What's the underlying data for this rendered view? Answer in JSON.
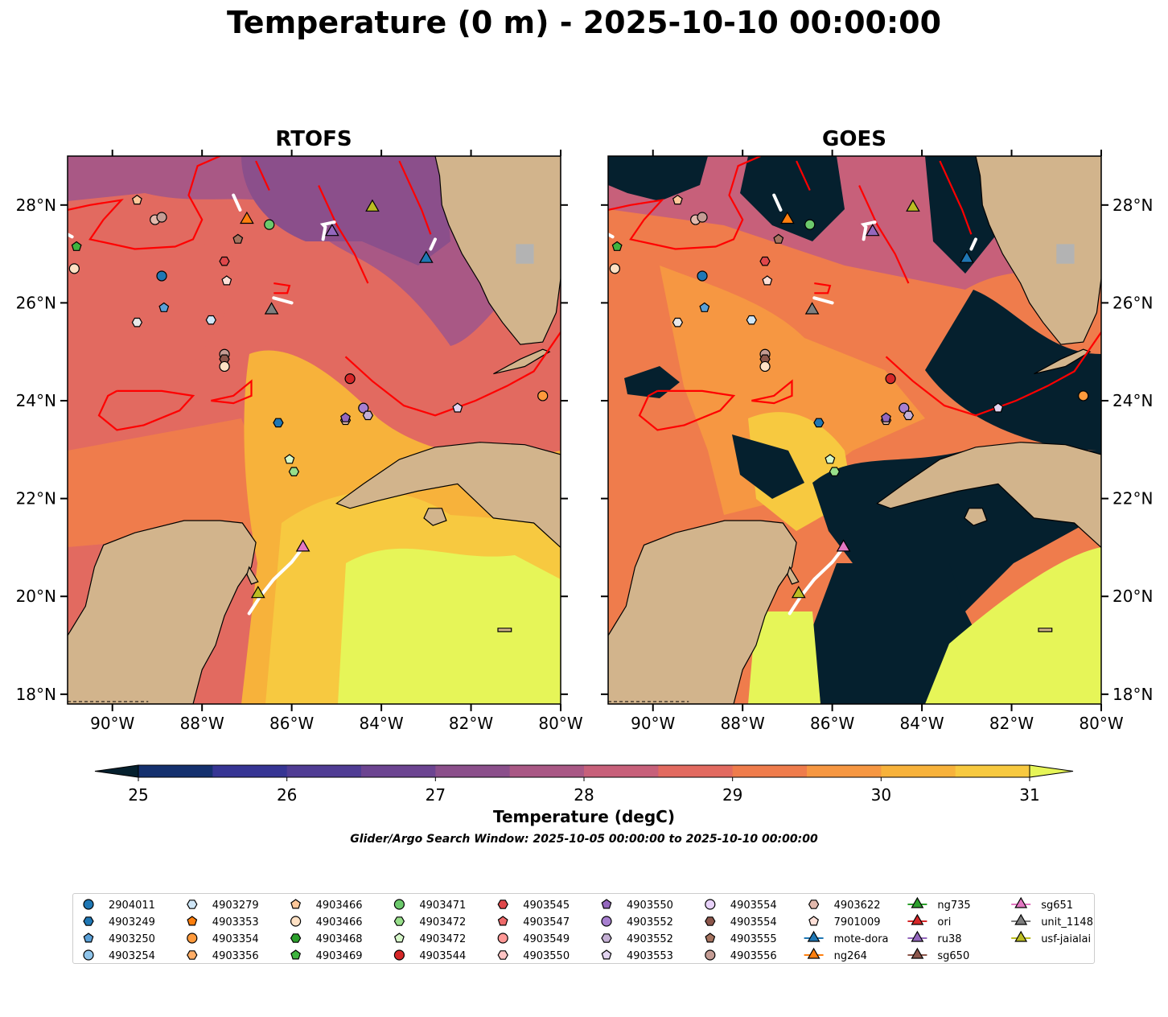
{
  "title": "Temperature (0 m) - 2025-10-10 00:00:00",
  "panels": [
    {
      "title": "RTOFS"
    },
    {
      "title": "GOES"
    }
  ],
  "axes": {
    "lon_ticks": [
      "90°W",
      "88°W",
      "86°W",
      "84°W",
      "82°W",
      "80°W"
    ],
    "lat_ticks": [
      "28°N",
      "26°N",
      "24°N",
      "22°N",
      "20°N",
      "18°N"
    ],
    "lon_range": [
      -91,
      -80
    ],
    "lat_range": [
      17.8,
      29
    ]
  },
  "colorbar": {
    "label": "Temperature (degC)",
    "ticks": [
      "25",
      "26",
      "27",
      "28",
      "29",
      "30",
      "31"
    ],
    "range": [
      25,
      31
    ],
    "extend": "both",
    "colors": [
      "#05202e",
      "#14306e",
      "#363594",
      "#503c94",
      "#6c4491",
      "#8b4f8b",
      "#a95885",
      "#c7607a",
      "#e26a60",
      "#ef7c4c",
      "#f69742",
      "#f7b23b",
      "#f7c940",
      "#e6f558"
    ]
  },
  "search_window": "Glider/Argo Search Window: 2025-10-05 00:00:00 to 2025-10-10 00:00:00",
  "colors": {
    "land": "#d2b48c",
    "cloud": "#05202e",
    "front": "#ff0000",
    "track": "#ffffff"
  },
  "legend": [
    {
      "label": "2904011",
      "marker": "circle",
      "color": "#1f77b4"
    },
    {
      "label": "4903249",
      "marker": "hexagon",
      "color": "#1f77b4"
    },
    {
      "label": "4903250",
      "marker": "pentagon",
      "color": "#5aa0d8"
    },
    {
      "label": "4903254",
      "marker": "circle",
      "color": "#8fc4ea"
    },
    {
      "label": "4903279",
      "marker": "hexagon",
      "color": "#cfe6f7"
    },
    {
      "label": "4903353",
      "marker": "pentagon",
      "color": "#ff7f0e"
    },
    {
      "label": "4903354",
      "marker": "circle",
      "color": "#ff9a3c"
    },
    {
      "label": "4903356",
      "marker": "hexagon",
      "color": "#ffad66"
    },
    {
      "label": "4903466",
      "marker": "pentagon",
      "color": "#ffc89a"
    },
    {
      "label": "4903466",
      "marker": "circle",
      "color": "#ffe1c4"
    },
    {
      "label": "4903468",
      "marker": "hexagon",
      "color": "#2ca02c"
    },
    {
      "label": "4903469",
      "marker": "pentagon",
      "color": "#3fb43f"
    },
    {
      "label": "4903471",
      "marker": "circle",
      "color": "#6cc96c"
    },
    {
      "label": "4903472",
      "marker": "hexagon",
      "color": "#98df8a"
    },
    {
      "label": "4903472",
      "marker": "pentagon",
      "color": "#d6f7c9"
    },
    {
      "label": "4903544",
      "marker": "circle",
      "color": "#d62728"
    },
    {
      "label": "4903545",
      "marker": "hexagon",
      "color": "#e0474a"
    },
    {
      "label": "4903547",
      "marker": "pentagon",
      "color": "#ee6a6a"
    },
    {
      "label": "4903549",
      "marker": "circle",
      "color": "#ff9896"
    },
    {
      "label": "4903550",
      "marker": "hexagon",
      "color": "#ffc4c4"
    },
    {
      "label": "4903550",
      "marker": "pentagon",
      "color": "#9467bd"
    },
    {
      "label": "4903552",
      "marker": "circle",
      "color": "#a77fcf"
    },
    {
      "label": "4903552",
      "marker": "hexagon",
      "color": "#c5b0d5"
    },
    {
      "label": "4903553",
      "marker": "pentagon",
      "color": "#e2d4f0"
    },
    {
      "label": "4903554",
      "marker": "circle",
      "color": "#e8d2fa"
    },
    {
      "label": "4903554",
      "marker": "hexagon",
      "color": "#8c564b"
    },
    {
      "label": "4903555",
      "marker": "pentagon",
      "color": "#a5735f"
    },
    {
      "label": "4903556",
      "marker": "circle",
      "color": "#c49c94"
    },
    {
      "label": "4903622",
      "marker": "hexagon",
      "color": "#e3b9ad"
    },
    {
      "label": "7901009",
      "marker": "pentagon",
      "color": "#ffe0d8"
    },
    {
      "label": "mote-dora",
      "marker": "triangle",
      "color": "#1f77b4",
      "line": true
    },
    {
      "label": "ng264",
      "marker": "triangle",
      "color": "#ff7f0e",
      "line": true
    },
    {
      "label": "ng735",
      "marker": "triangle",
      "color": "#2ca02c",
      "line": true
    },
    {
      "label": "ori",
      "marker": "triangle",
      "color": "#d62728",
      "line": true
    },
    {
      "label": "ru38",
      "marker": "triangle",
      "color": "#9467bd",
      "line": true
    },
    {
      "label": "sg650",
      "marker": "triangle",
      "color": "#8c564b",
      "line": true
    },
    {
      "label": "sg651",
      "marker": "triangle",
      "color": "#e377c2",
      "line": true
    },
    {
      "label": "unit_1148",
      "marker": "triangle",
      "color": "#7f7f7f",
      "line": true
    },
    {
      "label": "usf-jaialai",
      "marker": "triangle",
      "color": "#bcbd22",
      "line": true
    }
  ],
  "floats": [
    {
      "lon": -88.9,
      "lat": 26.55,
      "marker": "circle",
      "color": "#1f77b4"
    },
    {
      "lon": -88.85,
      "lat": 25.9,
      "marker": "pentagon",
      "color": "#5aa0d8"
    },
    {
      "lon": -89.45,
      "lat": 28.1,
      "marker": "pentagon",
      "color": "#ffc89a"
    },
    {
      "lon": -89.05,
      "lat": 27.7,
      "marker": "circle",
      "color": "#e3b9ad"
    },
    {
      "lon": -88.9,
      "lat": 27.75,
      "marker": "circle",
      "color": "#c49c94"
    },
    {
      "lon": -90.8,
      "lat": 27.15,
      "marker": "pentagon",
      "color": "#3fb43f"
    },
    {
      "lon": -90.85,
      "lat": 26.7,
      "marker": "circle",
      "color": "#ffe1c4"
    },
    {
      "lon": -87.5,
      "lat": 26.85,
      "marker": "hexagon",
      "color": "#e0474a"
    },
    {
      "lon": -87.45,
      "lat": 26.45,
      "marker": "pentagon",
      "color": "#ffe0d8"
    },
    {
      "lon": -87.2,
      "lat": 27.3,
      "marker": "pentagon",
      "color": "#a5735f"
    },
    {
      "lon": -86.5,
      "lat": 27.6,
      "marker": "circle",
      "color": "#6cc96c"
    },
    {
      "lon": -89.45,
      "lat": 25.6,
      "marker": "hexagon",
      "color": "#e8e8e8"
    },
    {
      "lon": -87.8,
      "lat": 25.65,
      "marker": "hexagon",
      "color": "#cfe6f7"
    },
    {
      "lon": -87.5,
      "lat": 24.95,
      "marker": "circle",
      "color": "#c49c94"
    },
    {
      "lon": -87.5,
      "lat": 24.85,
      "marker": "hexagon",
      "color": "#8c564b"
    },
    {
      "lon": -87.5,
      "lat": 24.7,
      "marker": "circle",
      "color": "#ffe1c4"
    },
    {
      "lon": -84.7,
      "lat": 24.45,
      "marker": "circle",
      "color": "#d62728"
    },
    {
      "lon": -84.4,
      "lat": 23.85,
      "marker": "circle",
      "color": "#a77fcf"
    },
    {
      "lon": -84.3,
      "lat": 23.7,
      "marker": "hexagon",
      "color": "#c5b0d5"
    },
    {
      "lon": -84.8,
      "lat": 23.6,
      "marker": "hexagon",
      "color": "#e3b9ad"
    },
    {
      "lon": -84.8,
      "lat": 23.65,
      "marker": "pentagon",
      "color": "#9467bd"
    },
    {
      "lon": -86.3,
      "lat": 23.55,
      "marker": "hexagon",
      "color": "#1f77b4"
    },
    {
      "lon": -86.05,
      "lat": 22.8,
      "marker": "pentagon",
      "color": "#d6f7c9"
    },
    {
      "lon": -85.95,
      "lat": 22.55,
      "marker": "hexagon",
      "color": "#98df8a"
    },
    {
      "lon": -82.3,
      "lat": 23.85,
      "marker": "pentagon",
      "color": "#e2d4f0"
    },
    {
      "lon": -80.4,
      "lat": 24.1,
      "marker": "circle",
      "color": "#ff9a3c"
    }
  ],
  "gliders": [
    {
      "name": "ng264",
      "lon": -87,
      "lat": 27.7,
      "color": "#ff7f0e"
    },
    {
      "name": "ru38",
      "lon": -85.1,
      "lat": 27.45,
      "color": "#9467bd"
    },
    {
      "name": "usf-jaialai",
      "lon": -84.2,
      "lat": 27.95,
      "color": "#bcbd22"
    },
    {
      "name": "mote-dora",
      "lon": -83,
      "lat": 26.9,
      "color": "#1f77b4"
    },
    {
      "name": "unit_1148",
      "lon": -86.45,
      "lat": 25.85,
      "color": "#7f7f7f"
    },
    {
      "name": "sg651",
      "lon": -85.75,
      "lat": 21,
      "color": "#e377c2"
    },
    {
      "name": "usf-jaialai",
      "lon": -86.75,
      "lat": 20.05,
      "color": "#bcbd22"
    }
  ]
}
